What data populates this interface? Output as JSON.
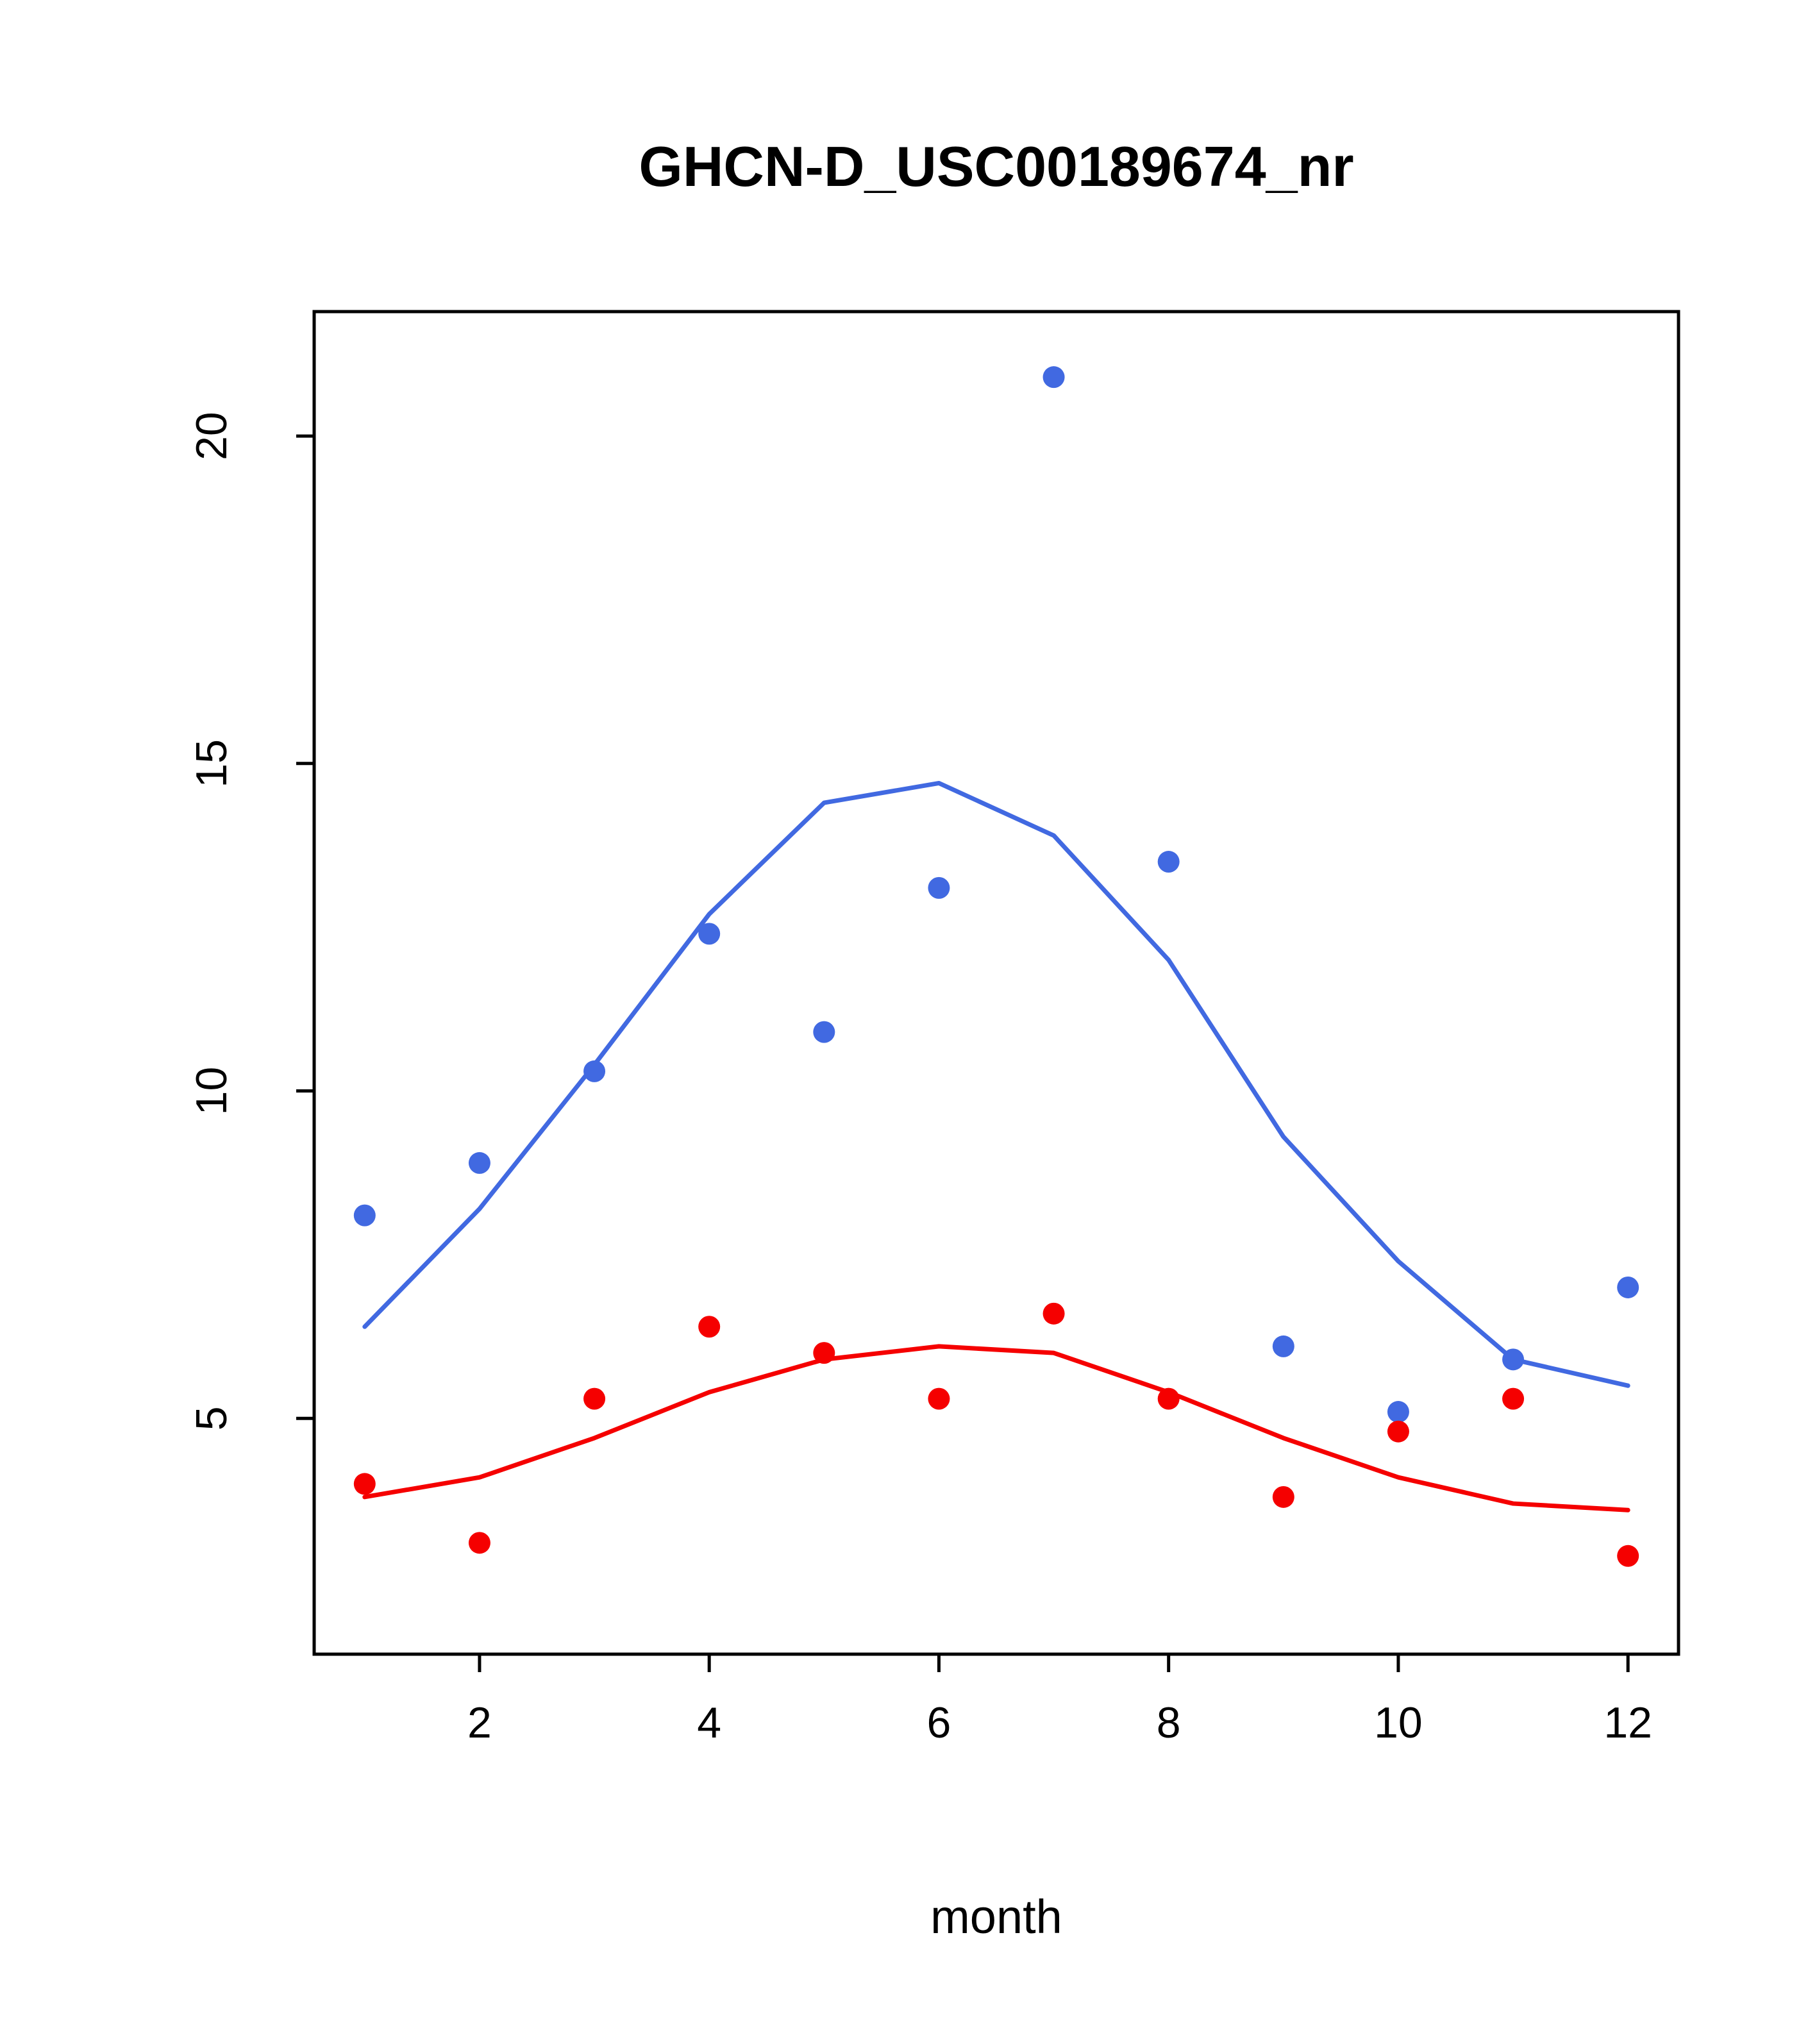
{
  "colors": {
    "series_blue": "#4169E1",
    "series_red": "#F50000",
    "axis": "#000000",
    "background": "#FFFFFF"
  },
  "chart_data": {
    "type": "scatter",
    "title": "GHCN-D_USC00189674_nr",
    "xlabel": "month",
    "ylabel": "",
    "x": [
      1,
      2,
      3,
      4,
      5,
      6,
      7,
      8,
      9,
      10,
      11,
      12
    ],
    "xticks": [
      2,
      4,
      6,
      8,
      10,
      12
    ],
    "yticks": [
      5,
      10,
      15,
      20
    ],
    "xlim": [
      0.56,
      12.44
    ],
    "ylim": [
      1.4,
      21.9
    ],
    "grid": false,
    "legend": "none",
    "series": [
      {
        "name": "blue-points",
        "style": "points",
        "color": "#4169E1",
        "values": [
          8.1,
          8.9,
          10.3,
          12.4,
          10.9,
          13.1,
          20.9,
          13.5,
          6.1,
          5.1,
          5.9,
          7.0
        ]
      },
      {
        "name": "blue-smooth-line",
        "style": "line",
        "color": "#4169E1",
        "values": [
          6.4,
          8.2,
          10.4,
          12.7,
          14.4,
          14.7,
          13.9,
          12.0,
          9.3,
          7.4,
          5.9,
          5.5
        ]
      },
      {
        "name": "red-points",
        "style": "points",
        "color": "#F50000",
        "values": [
          4.0,
          3.1,
          5.3,
          6.4,
          6.0,
          5.3,
          6.6,
          5.3,
          3.8,
          4.8,
          5.3,
          2.9
        ]
      },
      {
        "name": "red-smooth-line",
        "style": "line",
        "color": "#F50000",
        "values": [
          3.8,
          4.1,
          4.7,
          5.4,
          5.9,
          6.1,
          6.0,
          5.4,
          4.7,
          4.1,
          3.7,
          3.6
        ]
      }
    ]
  }
}
